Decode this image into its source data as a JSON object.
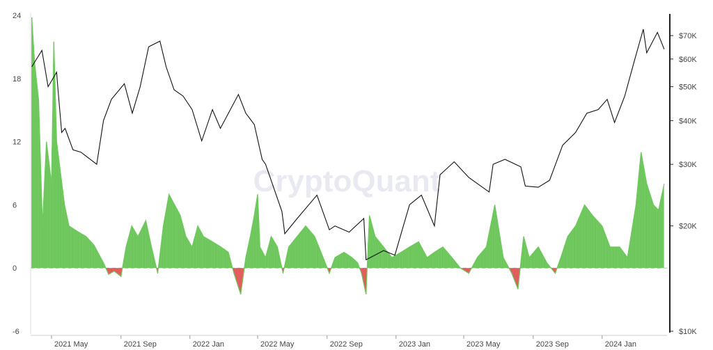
{
  "chart_data": {
    "type": "line",
    "watermark": "CryptoQuant",
    "x_ticks": [
      "2021 May",
      "2021 Sep",
      "2022 Jan",
      "2022 May",
      "2022 Sep",
      "2023 Jan",
      "2023 May",
      "2023 Sep",
      "2024 Jan"
    ],
    "x_tick_dates": [
      "2021-05-01",
      "2021-09-01",
      "2022-01-01",
      "2022-05-01",
      "2022-09-01",
      "2023-01-01",
      "2023-05-01",
      "2023-09-01",
      "2024-01-01"
    ],
    "xlim": [
      "2021-03-25",
      "2024-04-25"
    ],
    "left_axis": {
      "ylim": [
        -6,
        24
      ],
      "ticks": [
        "24",
        "18",
        "12",
        "6",
        "0",
        "-6"
      ],
      "tick_values": [
        24,
        18,
        12,
        6,
        0,
        -6
      ]
    },
    "right_axis": {
      "scale": "log",
      "ylim": [
        10000,
        80000
      ],
      "ticks": [
        "$70K",
        "$60K",
        "$50K",
        "$40K",
        "$30K",
        "$20K",
        "$10K"
      ],
      "tick_values": [
        70000,
        60000,
        50000,
        40000,
        30000,
        20000,
        10000
      ]
    },
    "zero_line": 0,
    "colors": {
      "positive": "#6cc65a",
      "negative": "#e05a5a",
      "price": "#111111",
      "zero_line": "#bbbbbb",
      "axis": "#222222"
    },
    "series": [
      {
        "axis": "left",
        "points": [
          [
            "2021-03-27",
            23.8
          ],
          [
            "2021-04-01",
            19.5
          ],
          [
            "2021-04-08",
            16
          ],
          [
            "2021-04-15",
            4
          ],
          [
            "2021-04-22",
            12
          ],
          [
            "2021-05-01",
            8
          ],
          [
            "2021-05-05",
            21.5
          ],
          [
            "2021-05-10",
            12
          ],
          [
            "2021-05-17",
            9
          ],
          [
            "2021-05-24",
            6
          ],
          [
            "2021-06-01",
            4
          ],
          [
            "2021-06-15",
            3.5
          ],
          [
            "2021-07-01",
            3
          ],
          [
            "2021-07-15",
            2.2
          ],
          [
            "2021-08-01",
            0.5
          ],
          [
            "2021-08-10",
            -0.6
          ],
          [
            "2021-08-20",
            -0.3
          ],
          [
            "2021-09-01",
            -0.8
          ],
          [
            "2021-09-10",
            2
          ],
          [
            "2021-09-20",
            4
          ],
          [
            "2021-10-01",
            3
          ],
          [
            "2021-10-15",
            4.5
          ],
          [
            "2021-10-25",
            2
          ],
          [
            "2021-11-05",
            -0.5
          ],
          [
            "2021-11-15",
            4
          ],
          [
            "2021-11-25",
            7
          ],
          [
            "2021-12-05",
            6
          ],
          [
            "2021-12-15",
            5
          ],
          [
            "2021-12-25",
            3
          ],
          [
            "2022-01-05",
            2
          ],
          [
            "2022-01-15",
            4
          ],
          [
            "2022-01-25",
            3
          ],
          [
            "2022-02-10",
            2.5
          ],
          [
            "2022-02-25",
            2
          ],
          [
            "2022-03-10",
            1.5
          ],
          [
            "2022-03-20",
            -0.5
          ],
          [
            "2022-04-01",
            -2.5
          ],
          [
            "2022-04-10",
            1
          ],
          [
            "2022-04-18",
            3
          ],
          [
            "2022-04-25",
            5
          ],
          [
            "2022-05-01",
            7
          ],
          [
            "2022-05-05",
            2
          ],
          [
            "2022-05-15",
            1
          ],
          [
            "2022-05-25",
            3
          ],
          [
            "2022-06-05",
            2
          ],
          [
            "2022-06-15",
            -0.5
          ],
          [
            "2022-06-25",
            2
          ],
          [
            "2022-07-10",
            3
          ],
          [
            "2022-07-25",
            4
          ],
          [
            "2022-08-10",
            3
          ],
          [
            "2022-08-25",
            1
          ],
          [
            "2022-09-05",
            -0.5
          ],
          [
            "2022-09-15",
            1
          ],
          [
            "2022-10-01",
            1.5
          ],
          [
            "2022-10-15",
            1
          ],
          [
            "2022-10-25",
            0.5
          ],
          [
            "2022-11-01",
            -0.5
          ],
          [
            "2022-11-09",
            -2.5
          ],
          [
            "2022-11-15",
            5
          ],
          [
            "2022-11-25",
            3
          ],
          [
            "2022-12-10",
            2
          ],
          [
            "2022-12-25",
            1
          ],
          [
            "2023-01-10",
            1.5
          ],
          [
            "2023-01-25",
            2
          ],
          [
            "2023-02-10",
            2.5
          ],
          [
            "2023-02-25",
            1
          ],
          [
            "2023-03-10",
            1.5
          ],
          [
            "2023-03-25",
            2
          ],
          [
            "2023-04-10",
            1
          ],
          [
            "2023-04-25",
            0
          ],
          [
            "2023-05-10",
            -0.5
          ],
          [
            "2023-05-25",
            1
          ],
          [
            "2023-06-10",
            2
          ],
          [
            "2023-06-25",
            6
          ],
          [
            "2023-07-10",
            1
          ],
          [
            "2023-07-25",
            -0.5
          ],
          [
            "2023-08-05",
            -2
          ],
          [
            "2023-08-15",
            3
          ],
          [
            "2023-08-25",
            1
          ],
          [
            "2023-09-10",
            2
          ],
          [
            "2023-09-25",
            0.5
          ],
          [
            "2023-10-10",
            -0.5
          ],
          [
            "2023-10-20",
            1
          ],
          [
            "2023-11-01",
            3
          ],
          [
            "2023-11-15",
            4
          ],
          [
            "2023-12-01",
            6
          ],
          [
            "2023-12-15",
            5
          ],
          [
            "2024-01-01",
            4
          ],
          [
            "2024-01-15",
            2
          ],
          [
            "2024-02-01",
            2
          ],
          [
            "2024-02-15",
            1
          ],
          [
            "2024-03-01",
            6
          ],
          [
            "2024-03-10",
            11
          ],
          [
            "2024-03-20",
            8
          ],
          [
            "2024-04-01",
            6
          ],
          [
            "2024-04-10",
            5.5
          ],
          [
            "2024-04-20",
            8
          ]
        ]
      },
      {
        "axis": "right",
        "points": [
          [
            "2021-03-27",
            57000
          ],
          [
            "2021-04-14",
            63500
          ],
          [
            "2021-04-25",
            50000
          ],
          [
            "2021-05-10",
            55000
          ],
          [
            "2021-05-13",
            48000
          ],
          [
            "2021-05-19",
            37000
          ],
          [
            "2021-05-25",
            38000
          ],
          [
            "2021-06-08",
            33000
          ],
          [
            "2021-06-22",
            32500
          ],
          [
            "2021-07-20",
            30000
          ],
          [
            "2021-08-01",
            40000
          ],
          [
            "2021-08-15",
            46000
          ],
          [
            "2021-09-07",
            51000
          ],
          [
            "2021-09-21",
            42000
          ],
          [
            "2021-10-05",
            50000
          ],
          [
            "2021-10-20",
            65000
          ],
          [
            "2021-11-09",
            67500
          ],
          [
            "2021-11-20",
            57000
          ],
          [
            "2021-12-04",
            49000
          ],
          [
            "2021-12-20",
            47000
          ],
          [
            "2022-01-05",
            43000
          ],
          [
            "2022-01-22",
            35000
          ],
          [
            "2022-02-10",
            43000
          ],
          [
            "2022-02-24",
            38000
          ],
          [
            "2022-03-28",
            47500
          ],
          [
            "2022-04-10",
            42000
          ],
          [
            "2022-04-25",
            39000
          ],
          [
            "2022-05-09",
            31000
          ],
          [
            "2022-05-15",
            30000
          ],
          [
            "2022-06-13",
            22000
          ],
          [
            "2022-06-18",
            19000
          ],
          [
            "2022-07-10",
            21000
          ],
          [
            "2022-08-14",
            24500
          ],
          [
            "2022-09-05",
            19500
          ],
          [
            "2022-09-15",
            20000
          ],
          [
            "2022-10-10",
            19200
          ],
          [
            "2022-11-05",
            21000
          ],
          [
            "2022-11-09",
            16000
          ],
          [
            "2022-12-10",
            17000
          ],
          [
            "2022-12-30",
            16500
          ],
          [
            "2023-01-14",
            20000
          ],
          [
            "2023-01-25",
            23000
          ],
          [
            "2023-02-15",
            24500
          ],
          [
            "2023-03-10",
            20000
          ],
          [
            "2023-03-20",
            28000
          ],
          [
            "2023-04-14",
            30500
          ],
          [
            "2023-05-10",
            27500
          ],
          [
            "2023-06-15",
            25000
          ],
          [
            "2023-06-22",
            30000
          ],
          [
            "2023-07-13",
            31000
          ],
          [
            "2023-08-10",
            29500
          ],
          [
            "2023-08-18",
            26000
          ],
          [
            "2023-09-10",
            25800
          ],
          [
            "2023-09-30",
            27000
          ],
          [
            "2023-10-23",
            34000
          ],
          [
            "2023-11-15",
            37000
          ],
          [
            "2023-12-05",
            42000
          ],
          [
            "2023-12-25",
            43000
          ],
          [
            "2024-01-10",
            46000
          ],
          [
            "2024-01-23",
            39500
          ],
          [
            "2024-02-10",
            47000
          ],
          [
            "2024-02-28",
            60000
          ],
          [
            "2024-03-14",
            73000
          ],
          [
            "2024-03-20",
            62500
          ],
          [
            "2024-04-08",
            71500
          ],
          [
            "2024-04-20",
            64000
          ]
        ]
      }
    ]
  }
}
